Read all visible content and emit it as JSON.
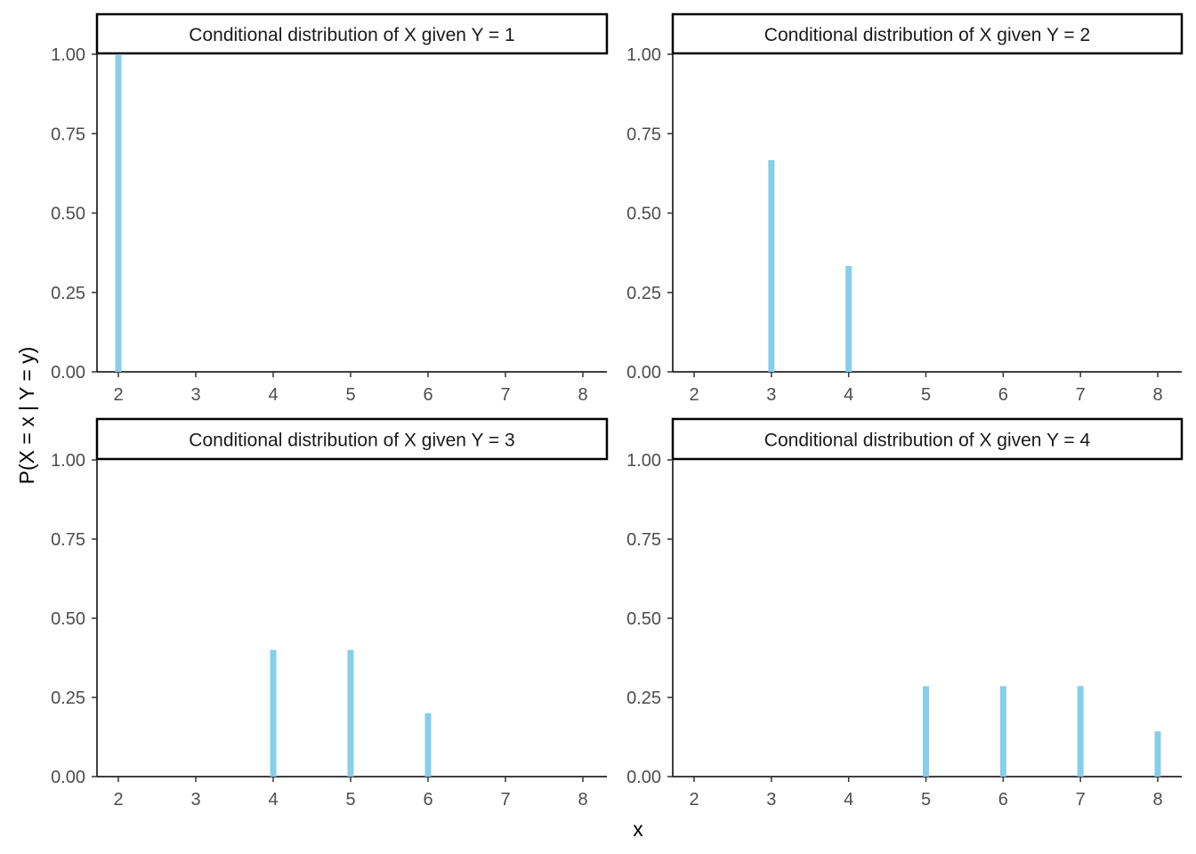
{
  "chart_data": {
    "type": "bar",
    "subtype": "faceted-lollipop",
    "xlabel": "x",
    "ylabel": "P(X = x | Y = y)",
    "x_ticks": [
      2,
      3,
      4,
      5,
      6,
      7,
      8
    ],
    "x_tick_labels": [
      "2",
      "3",
      "4",
      "5",
      "6",
      "7",
      "8"
    ],
    "y_ticks": [
      0,
      0.25,
      0.5,
      0.75,
      1
    ],
    "y_tick_labels": [
      "0.00",
      "0.25",
      "0.50",
      "0.75",
      "1.00"
    ],
    "xlim": [
      1.64,
      8.3
    ],
    "ylim": [
      0,
      1.12
    ],
    "bar_color": "#87CEEB",
    "grid": false,
    "facets": [
      {
        "title": "Conditional distribution of X given Y = 1",
        "x": [
          2
        ],
        "values": [
          1.0
        ]
      },
      {
        "title": "Conditional distribution of X given Y = 2",
        "x": [
          3,
          4
        ],
        "values": [
          0.6667,
          0.3333
        ]
      },
      {
        "title": "Conditional distribution of X given Y = 3",
        "x": [
          4,
          5,
          6
        ],
        "values": [
          0.4,
          0.4,
          0.2
        ]
      },
      {
        "title": "Conditional distribution of X given Y = 4",
        "x": [
          5,
          6,
          7,
          8
        ],
        "values": [
          0.2857,
          0.2857,
          0.2857,
          0.1429
        ]
      }
    ]
  }
}
